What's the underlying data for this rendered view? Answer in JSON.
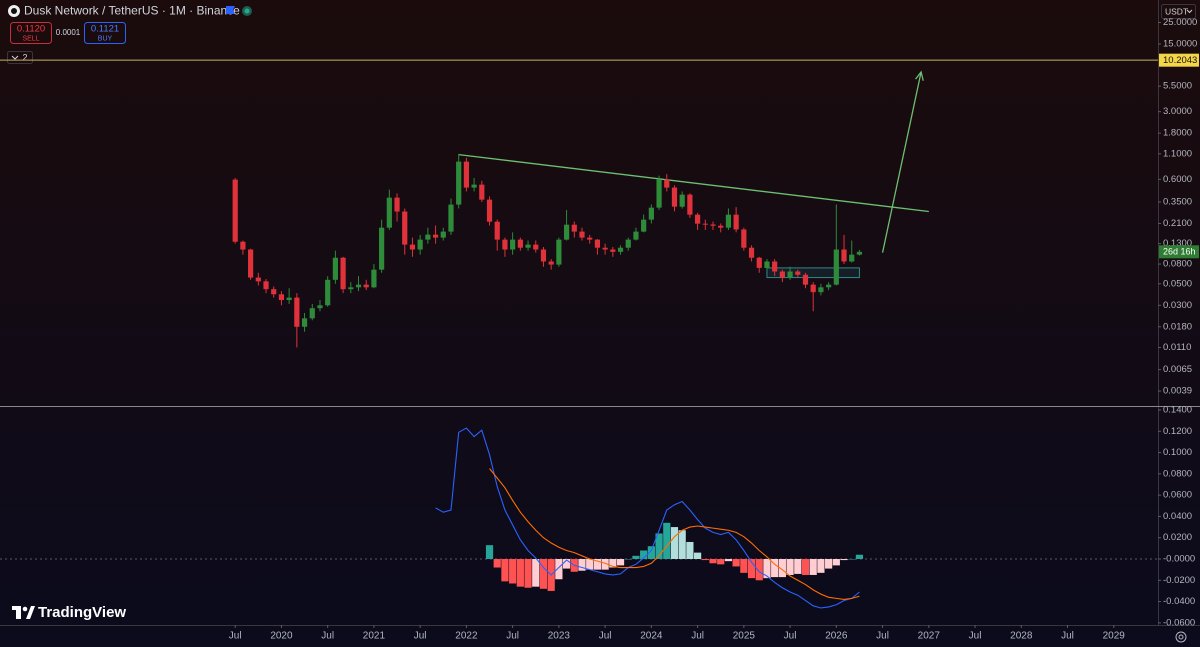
{
  "header": {
    "symbol": "Dusk Network / TetherUS · 1M · Binance",
    "sell_price": "0.1120",
    "sell_label": "SELL",
    "spread": "0.0001",
    "buy_price": "0.1121",
    "buy_label": "BUY",
    "indicators_count": "2",
    "currency": "USDT",
    "brand": "TradingView"
  },
  "chart_data": [
    {
      "type": "candlestick",
      "log_scale": true,
      "up_color": "#2e8b3a",
      "down_color": "#e0323a",
      "xlim": [
        "2017-01",
        "2029-07"
      ],
      "xticks": [
        {
          "value": "2019-07",
          "label": "Jul"
        },
        {
          "value": "2020-01",
          "label": "2020"
        },
        {
          "value": "2020-07",
          "label": "Jul"
        },
        {
          "value": "2021-01",
          "label": "2021"
        },
        {
          "value": "2021-07",
          "label": "Jul"
        },
        {
          "value": "2022-01",
          "label": "2022"
        },
        {
          "value": "2022-07",
          "label": "Jul"
        },
        {
          "value": "2023-01",
          "label": "2023"
        },
        {
          "value": "2023-07",
          "label": "Jul"
        },
        {
          "value": "2024-01",
          "label": "2024"
        },
        {
          "value": "2024-07",
          "label": "Jul"
        },
        {
          "value": "2025-01",
          "label": "2025"
        },
        {
          "value": "2025-07",
          "label": "Jul"
        },
        {
          "value": "2026-01",
          "label": "2026"
        },
        {
          "value": "2026-07",
          "label": "Jul"
        },
        {
          "value": "2027-01",
          "label": "2027"
        },
        {
          "value": "2027-07",
          "label": "Jul"
        },
        {
          "value": "2028-01",
          "label": "2028"
        },
        {
          "value": "2028-07",
          "label": "Jul"
        },
        {
          "value": "2029-01",
          "label": "2029"
        }
      ],
      "ylim": [
        0.0028,
        42.7
      ],
      "yticks": [
        {
          "value": 25,
          "label": "25.0000"
        },
        {
          "value": 15,
          "label": "15.0000"
        },
        {
          "value": 5.5,
          "label": "5.5000"
        },
        {
          "value": 3,
          "label": "3.0000"
        },
        {
          "value": 1.8,
          "label": "1.8000"
        },
        {
          "value": 1.1,
          "label": "1.1000"
        },
        {
          "value": 0.6,
          "label": "0.6000"
        },
        {
          "value": 0.35,
          "label": "0.3500"
        },
        {
          "value": 0.21,
          "label": "0.2100"
        },
        {
          "value": 0.13,
          "label": "0.1300"
        },
        {
          "value": 0.08,
          "label": "0.0800"
        },
        {
          "value": 0.05,
          "label": "0.0500"
        },
        {
          "value": 0.03,
          "label": "0.0300"
        },
        {
          "value": 0.018,
          "label": "0.0180"
        },
        {
          "value": 0.011,
          "label": "0.0110"
        },
        {
          "value": 0.0065,
          "label": "0.0065"
        },
        {
          "value": 0.0039,
          "label": "0.0039"
        }
      ],
      "hline": 10.2043,
      "countdown": "26d 16h",
      "x": [
        "2019-07",
        "2019-08",
        "2019-09",
        "2019-10",
        "2019-11",
        "2019-12",
        "2020-01",
        "2020-02",
        "2020-03",
        "2020-04",
        "2020-05",
        "2020-06",
        "2020-07",
        "2020-08",
        "2020-09",
        "2020-10",
        "2020-11",
        "2020-12",
        "2021-01",
        "2021-02",
        "2021-03",
        "2021-04",
        "2021-05",
        "2021-06",
        "2021-07",
        "2021-08",
        "2021-09",
        "2021-10",
        "2021-11",
        "2021-12",
        "2022-01",
        "2022-02",
        "2022-03",
        "2022-04",
        "2022-05",
        "2022-06",
        "2022-07",
        "2022-08",
        "2022-09",
        "2022-10",
        "2022-11",
        "2022-12",
        "2023-01",
        "2023-02",
        "2023-03",
        "2023-04",
        "2023-05",
        "2023-06",
        "2023-07",
        "2023-08",
        "2023-09",
        "2023-10",
        "2023-11",
        "2023-12",
        "2024-01",
        "2024-02",
        "2024-03",
        "2024-04",
        "2024-05",
        "2024-06",
        "2024-07",
        "2024-08",
        "2024-09",
        "2024-10",
        "2024-11",
        "2024-12",
        "2025-01",
        "2025-02",
        "2025-03",
        "2025-04",
        "2025-05",
        "2025-06",
        "2025-07",
        "2025-08",
        "2025-09",
        "2025-10",
        "2025-11",
        "2025-12",
        "2026-01",
        "2026-02",
        "2026-03",
        "2026-04"
      ],
      "values": [
        [
          0.596,
          0.62,
          0.13,
          0.136
        ],
        [
          0.136,
          0.14,
          0.1,
          0.113
        ],
        [
          0.113,
          0.115,
          0.055,
          0.058
        ],
        [
          0.058,
          0.065,
          0.048,
          0.053
        ],
        [
          0.053,
          0.056,
          0.04,
          0.044
        ],
        [
          0.044,
          0.047,
          0.036,
          0.039
        ],
        [
          0.039,
          0.042,
          0.03,
          0.034
        ],
        [
          0.034,
          0.045,
          0.031,
          0.036
        ],
        [
          0.036,
          0.04,
          0.011,
          0.018
        ],
        [
          0.018,
          0.025,
          0.016,
          0.022
        ],
        [
          0.022,
          0.031,
          0.021,
          0.028
        ],
        [
          0.028,
          0.034,
          0.026,
          0.03
        ],
        [
          0.03,
          0.06,
          0.029,
          0.055
        ],
        [
          0.055,
          0.11,
          0.05,
          0.093
        ],
        [
          0.093,
          0.095,
          0.04,
          0.044
        ],
        [
          0.044,
          0.052,
          0.04,
          0.046
        ],
        [
          0.046,
          0.06,
          0.042,
          0.049
        ],
        [
          0.049,
          0.055,
          0.043,
          0.046
        ],
        [
          0.046,
          0.08,
          0.045,
          0.07
        ],
        [
          0.07,
          0.23,
          0.065,
          0.19
        ],
        [
          0.19,
          0.47,
          0.18,
          0.388
        ],
        [
          0.388,
          0.43,
          0.22,
          0.279
        ],
        [
          0.279,
          0.3,
          0.1,
          0.127
        ],
        [
          0.127,
          0.15,
          0.095,
          0.113
        ],
        [
          0.113,
          0.16,
          0.1,
          0.143
        ],
        [
          0.143,
          0.19,
          0.13,
          0.161
        ],
        [
          0.161,
          0.2,
          0.13,
          0.15
        ],
        [
          0.15,
          0.19,
          0.14,
          0.173
        ],
        [
          0.173,
          0.38,
          0.16,
          0.329
        ],
        [
          0.329,
          1.1,
          0.3,
          0.914
        ],
        [
          0.914,
          1.0,
          0.45,
          0.493
        ],
        [
          0.493,
          0.62,
          0.45,
          0.529
        ],
        [
          0.529,
          0.58,
          0.35,
          0.37
        ],
        [
          0.37,
          0.4,
          0.2,
          0.219
        ],
        [
          0.219,
          0.23,
          0.11,
          0.143
        ],
        [
          0.143,
          0.15,
          0.095,
          0.113
        ],
        [
          0.113,
          0.17,
          0.1,
          0.143
        ],
        [
          0.143,
          0.15,
          0.11,
          0.118
        ],
        [
          0.118,
          0.14,
          0.11,
          0.127
        ],
        [
          0.127,
          0.14,
          0.105,
          0.113
        ],
        [
          0.113,
          0.12,
          0.075,
          0.085
        ],
        [
          0.085,
          0.09,
          0.07,
          0.079
        ],
        [
          0.079,
          0.15,
          0.075,
          0.143
        ],
        [
          0.143,
          0.29,
          0.14,
          0.204
        ],
        [
          0.204,
          0.22,
          0.15,
          0.173
        ],
        [
          0.173,
          0.19,
          0.14,
          0.15
        ],
        [
          0.15,
          0.16,
          0.13,
          0.143
        ],
        [
          0.143,
          0.145,
          0.1,
          0.118
        ],
        [
          0.118,
          0.13,
          0.1,
          0.113
        ],
        [
          0.113,
          0.12,
          0.095,
          0.107
        ],
        [
          0.107,
          0.125,
          0.1,
          0.118
        ],
        [
          0.118,
          0.15,
          0.11,
          0.143
        ],
        [
          0.143,
          0.19,
          0.14,
          0.173
        ],
        [
          0.173,
          0.26,
          0.17,
          0.23
        ],
        [
          0.23,
          0.33,
          0.21,
          0.306
        ],
        [
          0.306,
          0.655,
          0.29,
          0.596
        ],
        [
          0.596,
          0.68,
          0.45,
          0.493
        ],
        [
          0.493,
          0.52,
          0.28,
          0.313
        ],
        [
          0.313,
          0.45,
          0.3,
          0.417
        ],
        [
          0.417,
          0.43,
          0.24,
          0.259
        ],
        [
          0.259,
          0.27,
          0.18,
          0.209
        ],
        [
          0.209,
          0.23,
          0.18,
          0.205
        ],
        [
          0.205,
          0.22,
          0.18,
          0.199
        ],
        [
          0.199,
          0.21,
          0.17,
          0.19
        ],
        [
          0.19,
          0.3,
          0.18,
          0.259
        ],
        [
          0.259,
          0.31,
          0.17,
          0.182
        ],
        [
          0.182,
          0.19,
          0.11,
          0.118
        ],
        [
          0.118,
          0.125,
          0.085,
          0.093
        ],
        [
          0.093,
          0.095,
          0.065,
          0.073
        ],
        [
          0.073,
          0.09,
          0.07,
          0.085
        ],
        [
          0.085,
          0.09,
          0.06,
          0.067
        ],
        [
          0.067,
          0.07,
          0.052,
          0.058
        ],
        [
          0.058,
          0.075,
          0.055,
          0.067
        ],
        [
          0.067,
          0.07,
          0.058,
          0.062
        ],
        [
          0.062,
          0.065,
          0.045,
          0.049
        ],
        [
          0.049,
          0.052,
          0.026,
          0.041
        ],
        [
          0.041,
          0.05,
          0.038,
          0.046
        ],
        [
          0.046,
          0.052,
          0.043,
          0.049
        ],
        [
          0.049,
          0.33,
          0.048,
          0.113
        ],
        [
          0.113,
          0.16,
          0.08,
          0.085
        ],
        [
          0.085,
          0.14,
          0.083,
          0.1
        ],
        [
          0.1,
          0.112,
          0.098,
          0.107
        ]
      ],
      "trendline": {
        "x": [
          "2021-12",
          "2027-01"
        ],
        "values": [
          1.08,
          0.279
        ],
        "color": "#6cc070"
      },
      "arrow": {
        "x": [
          "2026-07",
          "2026-12"
        ],
        "values": [
          0.105,
          7.7
        ],
        "color": "#6cc070"
      },
      "box": {
        "x": [
          "2025-04",
          "2026-04"
        ],
        "values": [
          0.073,
          0.058
        ],
        "color": "#2c8a8a"
      }
    },
    {
      "type": "macd",
      "zero_line": true,
      "xlim": [
        "2017-01",
        "2029-07"
      ],
      "ylim": [
        -0.062,
        0.1428
      ],
      "yticks": [
        {
          "value": 0.14,
          "label": "0.1400"
        },
        {
          "value": 0.12,
          "label": "0.1200"
        },
        {
          "value": 0.1,
          "label": "0.1000"
        },
        {
          "value": 0.08,
          "label": "0.0800"
        },
        {
          "value": 0.06,
          "label": "0.0600"
        },
        {
          "value": 0.04,
          "label": "0.0400"
        },
        {
          "value": 0.02,
          "label": "0.0200"
        },
        {
          "value": 0,
          "label": "-0.0000"
        },
        {
          "value": -0.02,
          "label": "-0.0200"
        },
        {
          "value": -0.04,
          "label": "-0.0400"
        },
        {
          "value": -0.06,
          "label": "-0.0600"
        }
      ],
      "x": [
        "2021-09",
        "2021-10",
        "2021-11",
        "2021-12",
        "2022-01",
        "2022-02",
        "2022-03",
        "2022-04",
        "2022-05",
        "2022-06",
        "2022-07",
        "2022-08",
        "2022-09",
        "2022-10",
        "2022-11",
        "2022-12",
        "2023-01",
        "2023-02",
        "2023-03",
        "2023-04",
        "2023-05",
        "2023-06",
        "2023-07",
        "2023-08",
        "2023-09",
        "2023-10",
        "2023-11",
        "2023-12",
        "2024-01",
        "2024-02",
        "2024-03",
        "2024-04",
        "2024-05",
        "2024-06",
        "2024-07",
        "2024-08",
        "2024-09",
        "2024-10",
        "2024-11",
        "2024-12",
        "2025-01",
        "2025-02",
        "2025-03",
        "2025-04",
        "2025-05",
        "2025-06",
        "2025-07",
        "2025-08",
        "2025-09",
        "2025-10",
        "2025-11",
        "2025-12",
        "2026-01",
        "2026-02",
        "2026-03",
        "2026-04"
      ],
      "histogram": {
        "colors": [
          "#26a69a",
          "#b2dfdb",
          "#ffcdd2",
          "#ff5252"
        ],
        "values": [
          null,
          null,
          null,
          null,
          null,
          null,
          null,
          0.013,
          -0.008,
          -0.021,
          -0.023,
          -0.026,
          -0.027,
          -0.026,
          -0.028,
          -0.03,
          -0.019,
          -0.009,
          -0.012,
          -0.011,
          -0.01,
          -0.01,
          -0.01,
          -0.008,
          -0.006,
          0.0,
          0.003,
          0.008,
          0.012,
          0.024,
          0.034,
          0.03,
          0.027,
          0.016,
          0.006,
          -0.001,
          -0.004,
          -0.005,
          -0.002,
          -0.007,
          -0.013,
          -0.018,
          -0.02,
          -0.018,
          -0.017,
          -0.017,
          -0.015,
          -0.014,
          -0.015,
          -0.015,
          -0.013,
          -0.009,
          -0.006,
          -0.001,
          0.0,
          0.004
        ]
      },
      "series": [
        {
          "color": "#2962ff",
          "values": [
            0.048,
            0.044,
            0.046,
            0.119,
            0.123,
            0.115,
            0.121,
            0.098,
            0.068,
            0.046,
            0.032,
            0.018,
            0.008,
            0.001,
            -0.008,
            -0.015,
            -0.008,
            -0.001,
            -0.006,
            -0.008,
            -0.01,
            -0.012,
            -0.014,
            -0.015,
            -0.014,
            -0.008,
            -0.005,
            0.001,
            0.008,
            0.027,
            0.046,
            0.051,
            0.054,
            0.046,
            0.037,
            0.029,
            0.025,
            0.023,
            0.025,
            0.018,
            0.008,
            -0.003,
            -0.012,
            -0.016,
            -0.022,
            -0.027,
            -0.031,
            -0.034,
            -0.039,
            -0.044,
            -0.046,
            -0.045,
            -0.043,
            -0.039,
            -0.037,
            -0.031
          ]
        },
        {
          "color": "#ff6d00",
          "values": [
            null,
            null,
            null,
            null,
            null,
            null,
            null,
            0.085,
            0.076,
            0.067,
            0.055,
            0.044,
            0.035,
            0.027,
            0.02,
            0.015,
            0.011,
            0.008,
            0.006,
            0.003,
            0.0,
            -0.002,
            -0.004,
            -0.007,
            -0.008,
            -0.008,
            -0.008,
            -0.007,
            -0.004,
            0.003,
            0.012,
            0.021,
            0.027,
            0.03,
            0.031,
            0.03,
            0.029,
            0.028,
            0.027,
            0.025,
            0.021,
            0.015,
            0.008,
            0.002,
            -0.005,
            -0.01,
            -0.016,
            -0.02,
            -0.024,
            -0.029,
            -0.033,
            -0.036,
            -0.037,
            -0.038,
            -0.037,
            -0.035
          ]
        }
      ]
    }
  ]
}
